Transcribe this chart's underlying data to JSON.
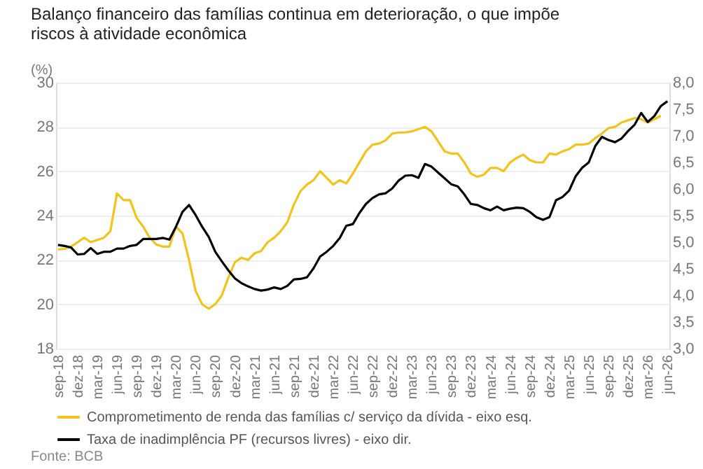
{
  "chart_data": {
    "type": "line",
    "title": "Balanço financeiro das famílias continua em deterioração, o que impõe riscos à atividade econômica",
    "ylabel": "(%)",
    "categories": [
      "sep-18",
      null,
      null,
      "dez-18",
      null,
      null,
      "mar-19",
      null,
      null,
      "jun-19",
      null,
      null,
      "sep-19",
      null,
      null,
      "dez-19",
      null,
      null,
      "mar-20",
      null,
      null,
      "jun-20",
      null,
      null,
      "sep-20",
      null,
      null,
      "dez-20",
      null,
      null,
      "mar-21",
      null,
      null,
      "jun-21",
      null,
      null,
      "sep-21",
      null,
      null,
      "dez-21",
      null,
      null,
      "mar-22",
      null,
      null,
      "jun-22",
      null,
      null,
      "sep-22",
      null,
      null,
      "dez-22",
      null,
      null,
      "mar-23",
      null,
      null,
      "jun-23",
      null,
      null,
      "sep-23",
      null,
      null,
      "dez-23",
      null,
      null,
      "mar-24",
      null,
      null,
      "jun-24",
      null,
      null,
      "sep-24",
      null,
      null,
      "dez-24",
      null,
      null,
      "mar-25",
      null,
      null,
      "jun-25",
      null,
      null,
      "sep-25",
      null,
      null,
      "dez-25",
      null,
      null,
      "mar-26",
      null,
      null,
      "jun-26"
    ],
    "series": [
      {
        "name": "Comprometimento de renda das famílias c/ serviço da dívida - eixo esq.",
        "color": "#f2c31a",
        "values": [
          22.47,
          22.5,
          22.6,
          22.8,
          23.0,
          22.8,
          22.9,
          23.0,
          23.3,
          25.0,
          24.7,
          24.7,
          23.9,
          23.5,
          23.0,
          22.7,
          22.6,
          22.6,
          23.5,
          23.2,
          22.0,
          20.6,
          20.0,
          19.8,
          20.0,
          20.4,
          21.2,
          21.9,
          22.1,
          22.0,
          22.3,
          22.4,
          22.8,
          23.0,
          23.3,
          23.7,
          24.5,
          25.1,
          25.4,
          25.6,
          26.0,
          25.7,
          25.4,
          25.6,
          25.45,
          25.9,
          26.4,
          26.9,
          27.2,
          27.25,
          27.4,
          27.7,
          27.75,
          27.75,
          27.8,
          27.9,
          28.0,
          27.8,
          27.35,
          26.9,
          26.8,
          26.8,
          26.4,
          25.9,
          25.75,
          25.85,
          26.15,
          26.15,
          26.0,
          26.4,
          26.6,
          26.75,
          26.5,
          26.4,
          26.4,
          26.8,
          26.75,
          26.9,
          27.0,
          27.2,
          27.2,
          27.25,
          27.5,
          27.7,
          27.95,
          28.0,
          28.2,
          28.3,
          28.4,
          28.35,
          28.2,
          28.35,
          28.5,
          null
        ]
      },
      {
        "name": "Taxa de inadimplência PF (recursos livres) - eixo dir.",
        "color": "#000000",
        "axis": "y2",
        "values": [
          4.95,
          4.93,
          4.9,
          4.77,
          4.78,
          4.89,
          4.78,
          4.82,
          4.82,
          4.88,
          4.88,
          4.93,
          4.95,
          5.06,
          5.06,
          5.06,
          5.08,
          5.05,
          5.29,
          5.57,
          5.7,
          5.51,
          5.29,
          5.1,
          4.82,
          4.64,
          4.47,
          4.32,
          4.23,
          4.17,
          4.12,
          4.09,
          4.11,
          4.15,
          4.12,
          4.18,
          4.3,
          4.31,
          4.34,
          4.51,
          4.73,
          4.82,
          4.93,
          5.08,
          5.31,
          5.34,
          5.55,
          5.72,
          5.83,
          5.9,
          5.92,
          6.01,
          6.16,
          6.25,
          6.26,
          6.21,
          6.47,
          6.42,
          6.31,
          6.2,
          6.09,
          6.05,
          5.9,
          5.72,
          5.7,
          5.64,
          5.6,
          5.67,
          5.6,
          5.63,
          5.65,
          5.64,
          5.57,
          5.47,
          5.42,
          5.47,
          5.79,
          5.85,
          5.97,
          6.24,
          6.4,
          6.5,
          6.81,
          6.98,
          6.92,
          6.88,
          6.95,
          7.09,
          7.21,
          7.43,
          7.26,
          7.37,
          7.56,
          7.65
        ]
      }
    ],
    "ylim": [
      18,
      30
    ],
    "yticks": [
      18,
      20,
      22,
      24,
      26,
      28,
      30
    ],
    "y2lim": [
      3,
      8
    ],
    "y2ticks": [
      {
        "value": 3,
        "label": "3,0"
      },
      {
        "value": 3.5,
        "label": "3,5"
      },
      {
        "value": 4,
        "label": "4,0"
      },
      {
        "value": 4.5,
        "label": "4,5"
      },
      {
        "value": 5,
        "label": "5,0"
      },
      {
        "value": 5.5,
        "label": "5,5"
      },
      {
        "value": 6,
        "label": "6,0"
      },
      {
        "value": 6.5,
        "label": "6,5"
      },
      {
        "value": 7,
        "label": "7,0"
      },
      {
        "value": 7.5,
        "label": "7,5"
      },
      {
        "value": 8,
        "label": "8,0"
      }
    ],
    "grid": "y",
    "legend": "bottom",
    "marker": "none",
    "line_style": "solid",
    "annotations": [
      "Fonte: BCB"
    ]
  }
}
